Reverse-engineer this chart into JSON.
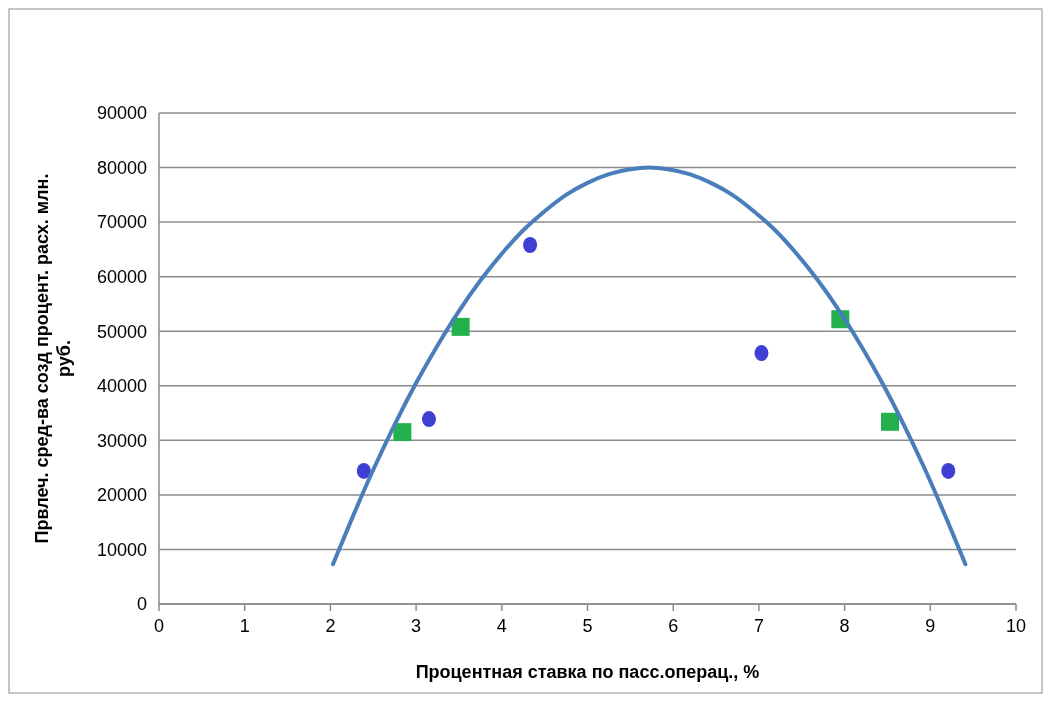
{
  "chart_data": {
    "type": "scatter",
    "xlabel": "Процентная ставка по пасс.операц., %",
    "ylabel": "Првлеч. сред-ва созд процент. расх. млн. руб.",
    "xlim": [
      0,
      10
    ],
    "xticks": [
      0,
      1,
      2,
      3,
      4,
      5,
      6,
      7,
      8,
      9,
      10
    ],
    "ylim": [
      0,
      90000
    ],
    "yticks": [
      0,
      10000,
      20000,
      30000,
      40000,
      50000,
      60000,
      70000,
      80000,
      90000
    ],
    "grid": "y",
    "series": [
      {
        "marker": "circle",
        "color": "#3f3fd4",
        "x": [
          2.39,
          3.15,
          4.33,
          7.03,
          9.21
        ],
        "values": [
          24400,
          33900,
          65800,
          46000,
          24400
        ]
      },
      {
        "marker": "square",
        "color": "#22b14c",
        "x": [
          2.84,
          3.52,
          7.95,
          8.53
        ],
        "values": [
          31500,
          50800,
          52200,
          33400
        ]
      },
      {
        "type": "line",
        "marker": "none",
        "color": "#4a7ebb",
        "x": [
          2.03,
          2.25,
          2.5,
          2.75,
          3.0,
          3.25,
          3.5,
          3.75,
          4.0,
          4.25,
          4.5,
          4.75,
          5.0,
          5.25,
          5.5,
          5.72,
          5.94,
          6.19,
          6.44,
          6.69,
          6.94,
          7.19,
          7.44,
          7.69,
          7.94,
          8.19,
          8.44,
          8.69,
          8.94,
          9.19,
          9.41
        ],
        "values": [
          7300,
          15600,
          24600,
          32900,
          40500,
          47400,
          53700,
          59300,
          64200,
          68500,
          72000,
          75000,
          77200,
          78800,
          79700,
          80000,
          79700,
          78800,
          77200,
          75000,
          72000,
          68500,
          64200,
          59300,
          53700,
          47400,
          40500,
          32900,
          24600,
          15600,
          7300
        ]
      }
    ]
  }
}
